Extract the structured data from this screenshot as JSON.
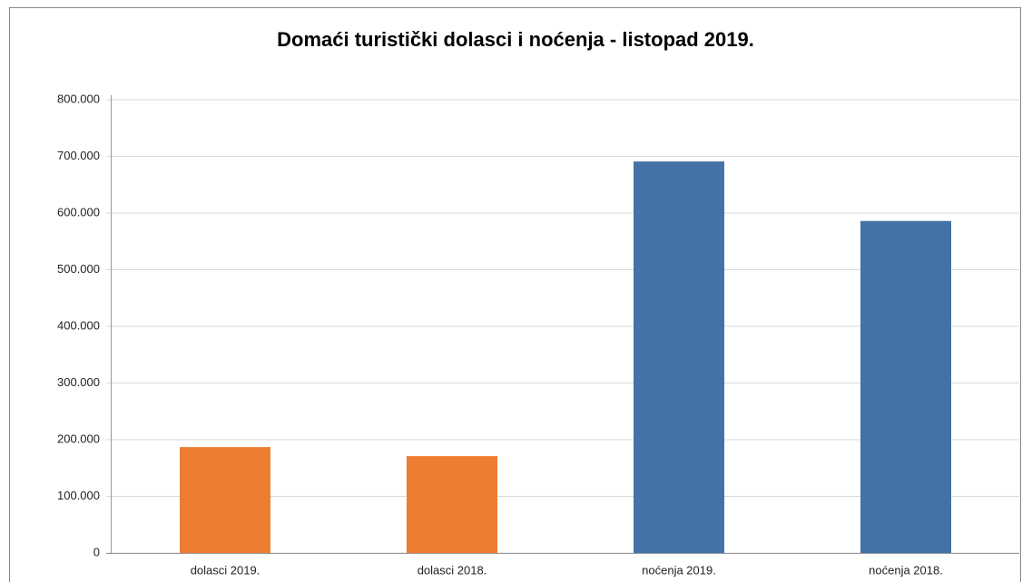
{
  "chart_data": {
    "type": "bar",
    "title": "Domaći turistički dolasci i noćenja - listopad 2019.",
    "categories": [
      "dolasci 2019.",
      "dolasci 2018.",
      "noćenja 2019.",
      "noćenja 2018."
    ],
    "values": [
      187000,
      171000,
      691000,
      586000
    ],
    "colors": [
      "#ed7d31",
      "#ed7d31",
      "#4472a8",
      "#4472a8"
    ],
    "ylim": [
      0,
      800000
    ],
    "yticks": [
      0,
      {
        "value": 100000,
        "label": "100.000"
      },
      {
        "value": 200000,
        "label": "200.000"
      },
      {
        "value": 300000,
        "label": "300.000"
      },
      {
        "value": 400000,
        "label": "400.000"
      },
      {
        "value": 500000,
        "label": "500.000"
      },
      {
        "value": 600000,
        "label": "600.000"
      },
      {
        "value": 700000,
        "label": "700.000"
      },
      {
        "value": 800000,
        "label": "800.000"
      }
    ],
    "grid": true
  }
}
